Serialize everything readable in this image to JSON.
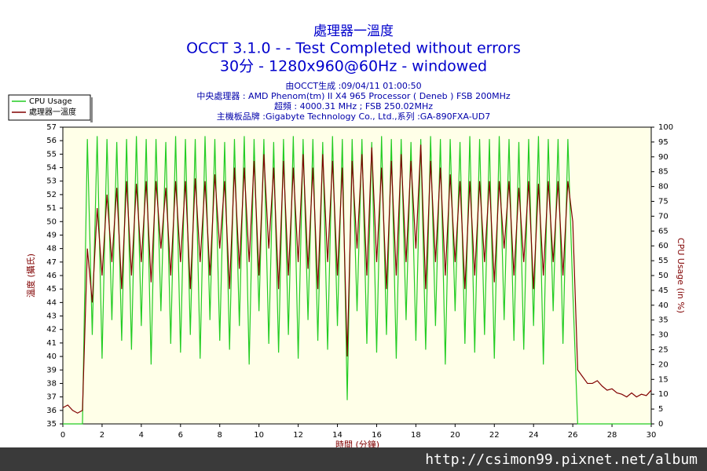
{
  "chart_data": {
    "type": "line",
    "title": "處理器一溫度",
    "subtitle": [
      "OCCT 3.1.0 -  - Test Completed without errors",
      "30分 - 1280x960@60Hz - windowed"
    ],
    "info": [
      "由OCCT生成 :09/04/11 01:00:50",
      "中央處理器 : AMD Phenom(tm) II X4 965 Processor ( Deneb ) FSB 200MHz",
      "超頻 : 4000.31 MHz ; FSB 250.02MHz",
      "主機板品牌 :Gigabyte Technology Co., Ltd.,系列 :GA-890FXA-UD7"
    ],
    "xlabel": "時間 (分鐘)",
    "ylabel": "溫度 (攝氏)",
    "y2label": "CPU Usage (in %)",
    "watermark": "http://csimon99.pixnet.net/album",
    "xlim": [
      0,
      30
    ],
    "xticks": [
      0,
      2,
      4,
      6,
      8,
      10,
      12,
      14,
      16,
      18,
      20,
      22,
      24,
      26,
      28,
      30
    ],
    "ylim": [
      35,
      57
    ],
    "yticks": [
      35,
      36,
      37,
      38,
      39,
      40,
      41,
      42,
      43,
      44,
      45,
      46,
      47,
      48,
      49,
      50,
      51,
      52,
      53,
      54,
      55,
      56,
      57
    ],
    "y2lim": [
      0,
      100
    ],
    "y2ticks": [
      0,
      5,
      10,
      15,
      20,
      25,
      30,
      35,
      40,
      45,
      50,
      55,
      60,
      65,
      70,
      75,
      80,
      85,
      90,
      95,
      100
    ],
    "x": [
      0,
      0.25,
      0.5,
      0.75,
      1,
      1.25,
      1.5,
      1.75,
      2,
      2.25,
      2.5,
      2.75,
      3,
      3.25,
      3.5,
      3.75,
      4,
      4.25,
      4.5,
      4.75,
      5,
      5.25,
      5.5,
      5.75,
      6,
      6.25,
      6.5,
      6.75,
      7,
      7.25,
      7.5,
      7.75,
      8,
      8.25,
      8.5,
      8.75,
      9,
      9.25,
      9.5,
      9.75,
      10,
      10.25,
      10.5,
      10.75,
      11,
      11.25,
      11.5,
      11.75,
      12,
      12.25,
      12.5,
      12.75,
      13,
      13.25,
      13.5,
      13.75,
      14,
      14.25,
      14.5,
      14.75,
      15,
      15.25,
      15.5,
      15.75,
      16,
      16.25,
      16.5,
      16.75,
      17,
      17.25,
      17.5,
      17.75,
      18,
      18.25,
      18.5,
      18.75,
      19,
      19.25,
      19.5,
      19.75,
      20,
      20.25,
      20.5,
      20.75,
      21,
      21.25,
      21.5,
      21.75,
      22,
      22.25,
      22.5,
      22.75,
      23,
      23.25,
      23.5,
      23.75,
      24,
      24.25,
      24.5,
      24.75,
      25,
      25.25,
      25.5,
      25.75,
      26,
      26.25,
      26.5,
      26.75,
      27,
      27.25,
      27.5,
      27.75,
      28,
      28.25,
      28.5,
      28.75,
      29,
      29.25,
      29.5,
      29.75,
      30
    ],
    "series": [
      {
        "name": "CPU Usage",
        "color": "#22cc22",
        "axis": "y2",
        "values": [
          0,
          0,
          0,
          0,
          0,
          96,
          30,
          97,
          22,
          96,
          35,
          95,
          28,
          96,
          25,
          97,
          33,
          96,
          20,
          96,
          38,
          95,
          27,
          97,
          24,
          96,
          30,
          96,
          22,
          97,
          35,
          96,
          28,
          95,
          25,
          96,
          33,
          97,
          20,
          96,
          38,
          96,
          27,
          95,
          24,
          96,
          30,
          97,
          22,
          96,
          35,
          96,
          28,
          95,
          25,
          97,
          33,
          96,
          8,
          96,
          38,
          96,
          27,
          95,
          24,
          97,
          30,
          96,
          22,
          96,
          35,
          95,
          28,
          96,
          25,
          97,
          33,
          96,
          20,
          96,
          38,
          95,
          27,
          97,
          24,
          96,
          30,
          96,
          22,
          97,
          35,
          96,
          28,
          95,
          25,
          96,
          33,
          97,
          20,
          96,
          38,
          96,
          27,
          96,
          45,
          0,
          0,
          0,
          0,
          0,
          0,
          0,
          0,
          0,
          0,
          0,
          0,
          0,
          0,
          0,
          0
        ]
      },
      {
        "name": "處理器一溫度",
        "color": "#800000",
        "axis": "y",
        "values": [
          36.2,
          36.4,
          36,
          35.8,
          36,
          48,
          44,
          51,
          46,
          52,
          47,
          52.5,
          45,
          53,
          46,
          52.8,
          47,
          53,
          45.5,
          53,
          48,
          52.5,
          46,
          53,
          47,
          53,
          45,
          53.2,
          47,
          53,
          46,
          53.5,
          48,
          53,
          45,
          54,
          46.5,
          54,
          47,
          54.5,
          46,
          55,
          48,
          54,
          45,
          54.5,
          46,
          54,
          47,
          55,
          46.5,
          54,
          45,
          55,
          47,
          54.5,
          46,
          54,
          40,
          54.5,
          48,
          55,
          46,
          55.5,
          47,
          54,
          45,
          54.5,
          46,
          55,
          47,
          54.5,
          48,
          55.7,
          45,
          54.5,
          47,
          54,
          46,
          53.5,
          47,
          53,
          45,
          53,
          46,
          53,
          47,
          53,
          45.5,
          53,
          48,
          53,
          46,
          52.5,
          47,
          53,
          45,
          52.8,
          46,
          53,
          47,
          53,
          46,
          53,
          50,
          39,
          38.5,
          38,
          38,
          38.2,
          37.8,
          37.5,
          37.6,
          37.3,
          37.2,
          37,
          37.3,
          37,
          37.2,
          37.1,
          37.5
        ]
      }
    ]
  }
}
